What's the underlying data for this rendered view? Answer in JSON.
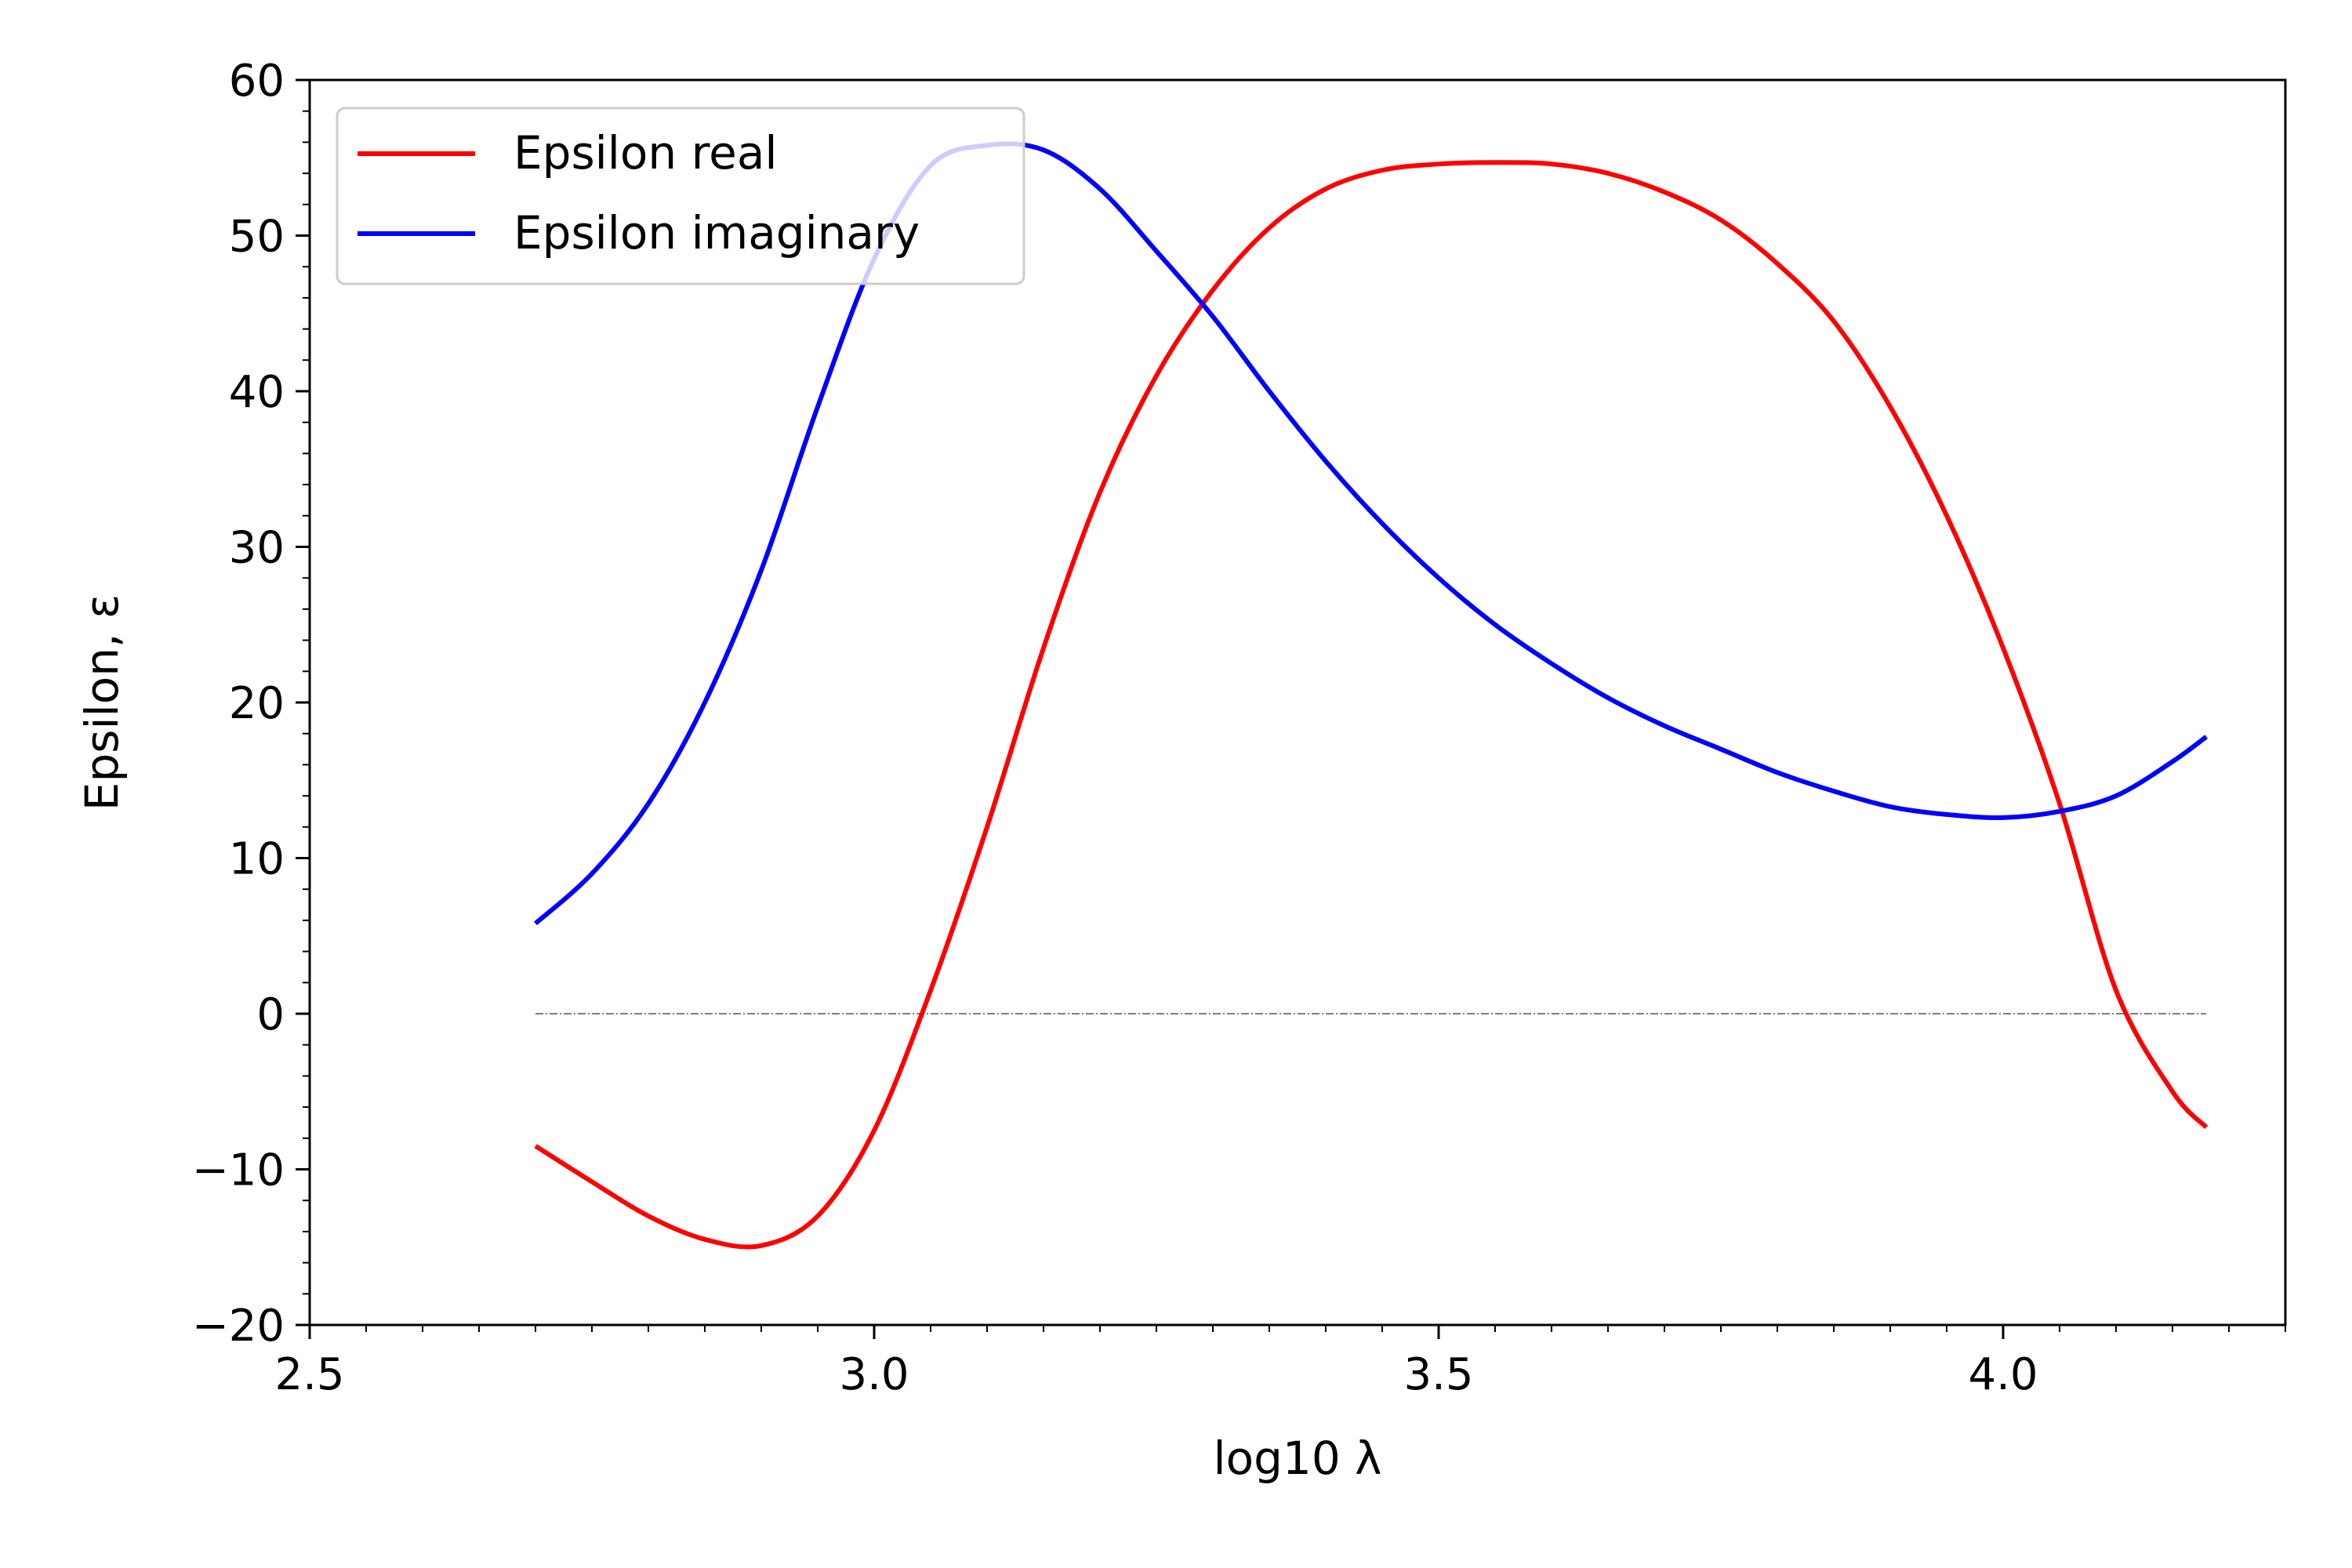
{
  "chart_data": {
    "type": "line",
    "title": "",
    "xlabel": "log10 λ",
    "ylabel": "Epsilon, ε",
    "xlim": [
      2.5,
      4.25
    ],
    "ylim": [
      -20,
      60
    ],
    "xticks": [
      2.5,
      3.0,
      3.5,
      4.0
    ],
    "xtick_labels": [
      "2.5",
      "3.0",
      "3.5",
      "4.0"
    ],
    "yticks": [
      -20,
      -10,
      0,
      10,
      20,
      30,
      40,
      50,
      60
    ],
    "ytick_labels": [
      "−20",
      "−10",
      "0",
      "10",
      "20",
      "30",
      "40",
      "50",
      "60"
    ],
    "grid": false,
    "legend": "upper-left",
    "zero_line": {
      "y": 0,
      "x_start": 2.7,
      "x_end": 4.18,
      "color": "#555555"
    },
    "series": [
      {
        "name": "Epsilon real",
        "color": "#ff0000",
        "x": [
          2.7,
          2.75,
          2.8,
          2.85,
          2.9,
          2.95,
          3.0,
          3.05,
          3.1,
          3.15,
          3.2,
          3.25,
          3.3,
          3.35,
          3.4,
          3.45,
          3.5,
          3.55,
          3.6,
          3.65,
          3.7,
          3.75,
          3.8,
          3.85,
          3.9,
          3.95,
          4.0,
          4.05,
          4.1,
          4.15,
          4.18
        ],
        "y": [
          -8.5,
          -10.8,
          -13.0,
          -14.5,
          -14.9,
          -13.0,
          -7.5,
          1.5,
          12.0,
          23.5,
          33.5,
          41.0,
          46.5,
          50.5,
          53.0,
          54.2,
          54.6,
          54.7,
          54.6,
          54.0,
          52.8,
          51.0,
          48.2,
          44.5,
          39.0,
          32.0,
          23.5,
          13.5,
          1.5,
          -5.0,
          -7.3
        ]
      },
      {
        "name": "Epsilon imaginary",
        "color": "#0000ff",
        "x": [
          2.7,
          2.75,
          2.8,
          2.85,
          2.9,
          2.95,
          3.0,
          3.05,
          3.1,
          3.15,
          3.2,
          3.25,
          3.3,
          3.35,
          3.4,
          3.45,
          3.5,
          3.55,
          3.6,
          3.65,
          3.7,
          3.75,
          3.8,
          3.85,
          3.9,
          3.95,
          4.0,
          4.05,
          4.1,
          4.15,
          4.18
        ],
        "y": [
          5.8,
          9.0,
          13.5,
          20.0,
          28.5,
          39.0,
          48.5,
          54.5,
          55.8,
          55.5,
          53.0,
          49.0,
          44.8,
          40.0,
          35.5,
          31.5,
          28.0,
          25.0,
          22.5,
          20.3,
          18.5,
          17.0,
          15.5,
          14.3,
          13.3,
          12.8,
          12.6,
          13.0,
          14.0,
          16.2,
          17.8
        ]
      }
    ]
  }
}
